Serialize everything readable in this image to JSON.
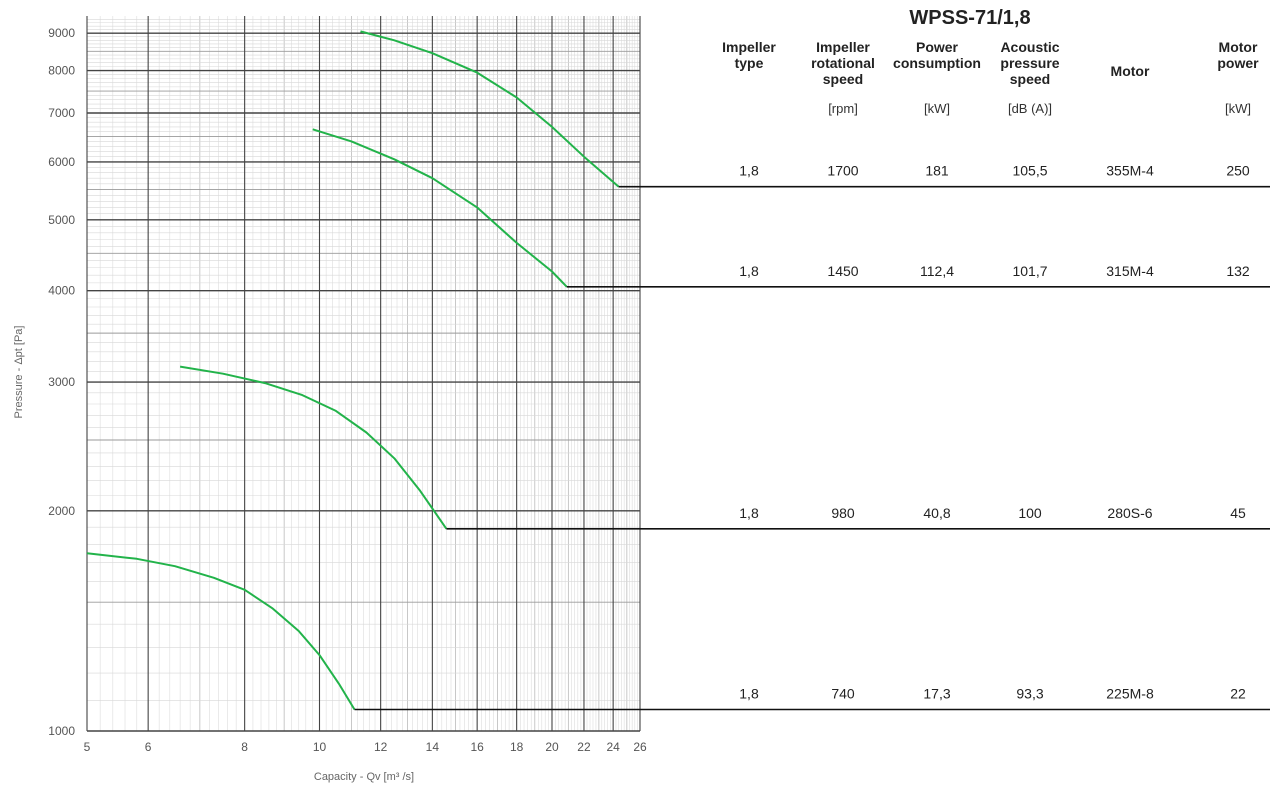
{
  "chart_data": {
    "type": "line",
    "title": "WPSS-71/1,8",
    "xlabel": "Capacity - Qv [m³ /s]",
    "ylabel": "Pressure - Δpt [Pa]",
    "x_scale": "log",
    "y_scale": "log",
    "xlim": [
      5,
      26
    ],
    "ylim": [
      1000,
      9500
    ],
    "x_ticks": [
      5,
      6,
      8,
      10,
      12,
      14,
      16,
      18,
      20,
      22,
      24,
      26
    ],
    "y_ticks": [
      1000,
      2000,
      3000,
      4000,
      5000,
      6000,
      7000,
      8000,
      9000
    ],
    "grid": true,
    "line_color": "#22b34a",
    "series": [
      {
        "points": [
          [
            11.3,
            9050
          ],
          [
            12.5,
            8800
          ],
          [
            14,
            8450
          ],
          [
            16,
            7950
          ],
          [
            18,
            7350
          ],
          [
            20,
            6700
          ],
          [
            22,
            6100
          ],
          [
            24.4,
            5550
          ]
        ],
        "end_pressure": 5550
      },
      {
        "points": [
          [
            9.8,
            6650
          ],
          [
            11,
            6400
          ],
          [
            12.5,
            6050
          ],
          [
            14,
            5700
          ],
          [
            16,
            5200
          ],
          [
            18,
            4650
          ],
          [
            20,
            4250
          ],
          [
            20.9,
            4050
          ]
        ],
        "end_pressure": 4050
      },
      {
        "points": [
          [
            6.6,
            3150
          ],
          [
            7.5,
            3080
          ],
          [
            8.5,
            2990
          ],
          [
            9.5,
            2880
          ],
          [
            10.5,
            2740
          ],
          [
            11.5,
            2560
          ],
          [
            12.5,
            2360
          ],
          [
            13.5,
            2130
          ],
          [
            14.6,
            1890
          ]
        ],
        "end_pressure": 1890
      },
      {
        "points": [
          [
            5,
            1750
          ],
          [
            5.8,
            1720
          ],
          [
            6.5,
            1680
          ],
          [
            7.3,
            1620
          ],
          [
            8,
            1560
          ],
          [
            8.7,
            1470
          ],
          [
            9.4,
            1370
          ],
          [
            10,
            1270
          ],
          [
            10.6,
            1160
          ],
          [
            11.1,
            1070
          ]
        ],
        "end_pressure": 1070
      }
    ],
    "table": {
      "columns": [
        {
          "header": [
            "Impeller",
            "type"
          ],
          "unit": ""
        },
        {
          "header": [
            "Impeller",
            "rotational",
            "speed"
          ],
          "unit": "[rpm]"
        },
        {
          "header": [
            "Power",
            "consumption"
          ],
          "unit": "[kW]"
        },
        {
          "header": [
            "Acoustic",
            "pressure",
            "speed"
          ],
          "unit": "[dB (A)]"
        },
        {
          "header": [
            "Motor"
          ],
          "unit": ""
        },
        {
          "header": [
            "Motor",
            "power"
          ],
          "unit": "[kW]"
        }
      ],
      "rows": [
        [
          "1,8",
          "1700",
          "181",
          "105,5",
          "355M-4",
          "250"
        ],
        [
          "1,8",
          "1450",
          "112,4",
          "101,7",
          "315M-4",
          "132"
        ],
        [
          "1,8",
          "980",
          "40,8",
          "100",
          "280S-6",
          "45"
        ],
        [
          "1,8",
          "740",
          "17,3",
          "93,3",
          "225M-8",
          "22"
        ]
      ]
    }
  }
}
